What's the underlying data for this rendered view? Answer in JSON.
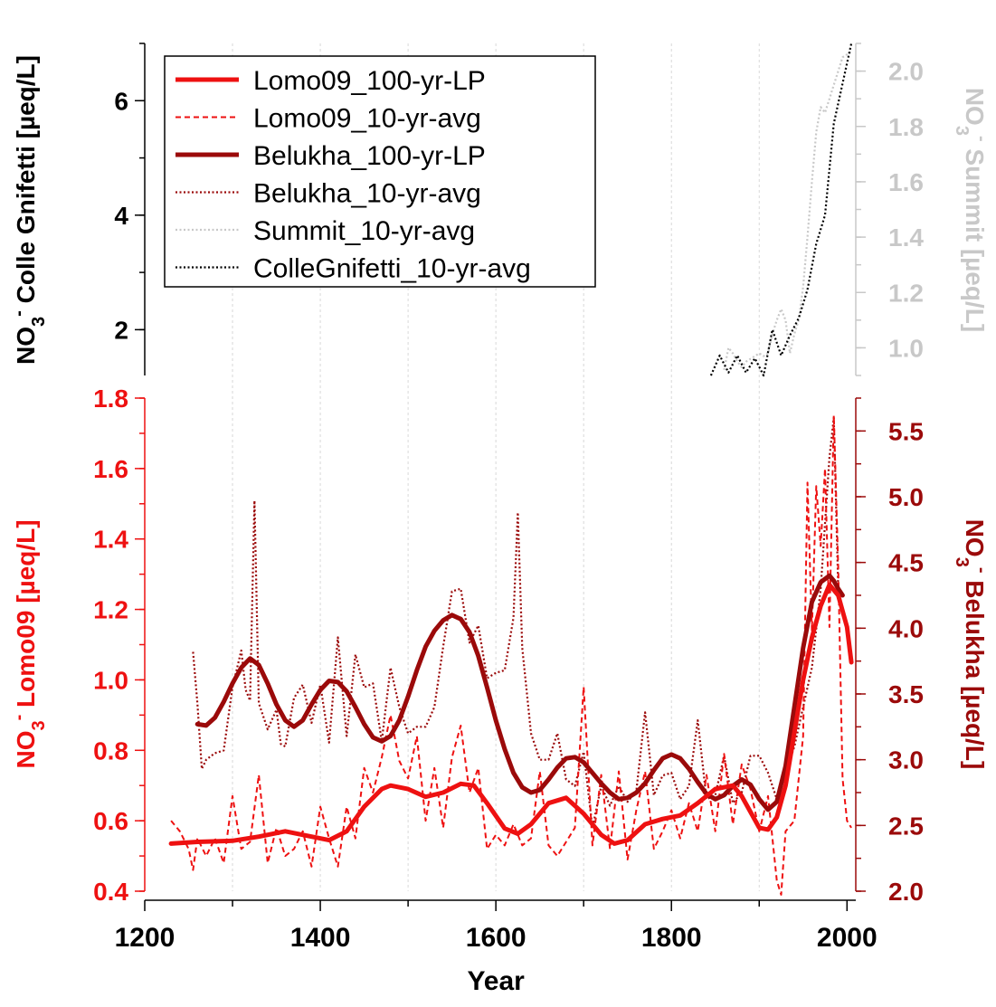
{
  "chart_data": {
    "type": "line",
    "xlabel": "Year",
    "x_ticks": [
      "1200",
      "1400",
      "1600",
      "1800",
      "2000"
    ],
    "xlim": [
      1200,
      2010
    ],
    "gridlines_x": [
      1300,
      1400,
      1500,
      1600,
      1700,
      1800,
      1900
    ],
    "colors": {
      "lomo": "#ee1111",
      "belukha": "#9b0a0a",
      "summit": "#c8c8c8",
      "colle": "#000000"
    },
    "panels": {
      "top": {
        "left_axis": {
          "label_parts": [
            "NO",
            "3",
            "-",
            " Colle Gnifetti [µeq/L]"
          ],
          "ticks": [
            "2",
            "4",
            "6"
          ],
          "ylim": [
            1.2,
            7.0
          ]
        },
        "right_axis": {
          "label_parts": [
            "NO",
            "3",
            "-",
            " Summit [µeq/L]"
          ],
          "ticks": [
            "1.0",
            "1.2",
            "1.4",
            "1.6",
            "1.8",
            "2.0"
          ],
          "ylim": [
            0.9,
            2.1
          ]
        }
      },
      "bottom": {
        "left_axis": {
          "label_parts": [
            "NO",
            "3",
            "-",
            "  Lomo09 [µeq/L]"
          ],
          "ticks": [
            "0.4",
            "0.6",
            "0.8",
            "1.0",
            "1.2",
            "1.4",
            "1.6",
            "1.8"
          ],
          "ylim": [
            0.4,
            1.8
          ]
        },
        "right_axis": {
          "label_parts": [
            "NO",
            "3",
            "-",
            " Belukha [µeq/L]"
          ],
          "ticks": [
            "2.0",
            "2.5",
            "3.0",
            "3.5",
            "4.0",
            "4.5",
            "5.0",
            "5.5"
          ],
          "ylim": [
            2.0,
            5.75
          ]
        }
      }
    },
    "legend": {
      "position": "top-left",
      "entries": [
        {
          "key": "lomo_lp",
          "label": "Lomo09_100-yr-LP"
        },
        {
          "key": "lomo_avg",
          "label": "Lomo09_10-yr-avg"
        },
        {
          "key": "belukha_lp",
          "label": "Belukha_100-yr-LP"
        },
        {
          "key": "belukha_avg",
          "label": "Belukha_10-yr-avg"
        },
        {
          "key": "summit_avg",
          "label": "Summit_10-yr-avg"
        },
        {
          "key": "colle_avg",
          "label": "ColleGnifetti_10-yr-avg"
        }
      ]
    },
    "series": [
      {
        "key": "lomo_lp",
        "label": "Lomo09_100-yr-LP",
        "panel": "bottom",
        "axis": "left",
        "style": "solid-thick",
        "x": [
          1230,
          1260,
          1300,
          1330,
          1360,
          1390,
          1410,
          1430,
          1450,
          1470,
          1480,
          1500,
          1520,
          1540,
          1560,
          1575,
          1590,
          1610,
          1625,
          1640,
          1660,
          1680,
          1700,
          1720,
          1735,
          1750,
          1770,
          1790,
          1810,
          1830,
          1850,
          1870,
          1880,
          1900,
          1910,
          1920,
          1930,
          1940,
          1950,
          1960,
          1970,
          1980,
          1990,
          2000,
          2005
        ],
        "y": [
          0.535,
          0.54,
          0.543,
          0.555,
          0.57,
          0.555,
          0.545,
          0.57,
          0.64,
          0.69,
          0.7,
          0.69,
          0.668,
          0.68,
          0.705,
          0.7,
          0.65,
          0.578,
          0.563,
          0.59,
          0.65,
          0.665,
          0.62,
          0.56,
          0.535,
          0.545,
          0.59,
          0.605,
          0.615,
          0.65,
          0.69,
          0.7,
          0.67,
          0.58,
          0.575,
          0.61,
          0.7,
          0.85,
          1.0,
          1.12,
          1.21,
          1.27,
          1.24,
          1.15,
          1.05
        ]
      },
      {
        "key": "lomo_avg",
        "label": "Lomo09_10-yr-avg",
        "panel": "bottom",
        "axis": "left",
        "style": "dashed",
        "x": [
          1230,
          1240,
          1250,
          1255,
          1260,
          1270,
          1280,
          1290,
          1300,
          1310,
          1320,
          1330,
          1340,
          1350,
          1360,
          1370,
          1380,
          1390,
          1400,
          1410,
          1420,
          1430,
          1440,
          1450,
          1460,
          1470,
          1480,
          1490,
          1500,
          1510,
          1520,
          1530,
          1540,
          1550,
          1560,
          1570,
          1580,
          1590,
          1600,
          1610,
          1620,
          1630,
          1640,
          1650,
          1660,
          1670,
          1680,
          1690,
          1700,
          1710,
          1720,
          1730,
          1740,
          1750,
          1760,
          1770,
          1780,
          1790,
          1800,
          1810,
          1820,
          1830,
          1840,
          1850,
          1860,
          1870,
          1880,
          1890,
          1900,
          1910,
          1920,
          1925,
          1930,
          1940,
          1950,
          1955,
          1960,
          1965,
          1970,
          1975,
          1980,
          1985,
          1990,
          1995,
          2000,
          2005
        ],
        "y": [
          0.6,
          0.57,
          0.52,
          0.46,
          0.55,
          0.5,
          0.55,
          0.48,
          0.67,
          0.52,
          0.54,
          0.73,
          0.48,
          0.58,
          0.5,
          0.52,
          0.57,
          0.47,
          0.64,
          0.55,
          0.47,
          0.64,
          0.55,
          0.75,
          0.68,
          0.78,
          0.9,
          0.77,
          0.72,
          0.84,
          0.6,
          0.75,
          0.58,
          0.78,
          0.87,
          0.68,
          0.75,
          0.52,
          0.56,
          0.53,
          0.59,
          0.53,
          0.55,
          0.74,
          0.53,
          0.5,
          0.54,
          0.58,
          0.98,
          0.53,
          0.73,
          0.52,
          0.74,
          0.49,
          0.63,
          0.74,
          0.52,
          0.57,
          0.63,
          0.55,
          0.65,
          0.57,
          0.73,
          0.57,
          0.79,
          0.59,
          0.76,
          0.69,
          0.57,
          0.67,
          0.43,
          0.39,
          0.57,
          0.6,
          0.84,
          1.56,
          1.14,
          1.55,
          1.38,
          1.6,
          1.15,
          1.75,
          1.32,
          0.72,
          0.6,
          0.58
        ]
      },
      {
        "key": "belukha_lp",
        "label": "Belukha_100-yr-LP",
        "panel": "bottom",
        "axis": "right",
        "style": "solid-thick",
        "x": [
          1260,
          1270,
          1280,
          1290,
          1300,
          1310,
          1320,
          1330,
          1340,
          1350,
          1360,
          1370,
          1380,
          1390,
          1400,
          1410,
          1420,
          1430,
          1440,
          1450,
          1460,
          1470,
          1480,
          1490,
          1500,
          1510,
          1520,
          1530,
          1540,
          1550,
          1560,
          1570,
          1580,
          1590,
          1600,
          1610,
          1620,
          1630,
          1640,
          1650,
          1660,
          1670,
          1680,
          1690,
          1700,
          1710,
          1720,
          1730,
          1740,
          1750,
          1760,
          1770,
          1780,
          1790,
          1800,
          1810,
          1820,
          1830,
          1840,
          1850,
          1860,
          1870,
          1880,
          1890,
          1900,
          1910,
          1920,
          1930,
          1940,
          1950,
          1960,
          1970,
          1980,
          1985,
          1990,
          1995
        ],
        "y": [
          3.27,
          3.26,
          3.32,
          3.44,
          3.58,
          3.7,
          3.77,
          3.72,
          3.58,
          3.42,
          3.3,
          3.25,
          3.3,
          3.42,
          3.53,
          3.6,
          3.59,
          3.52,
          3.4,
          3.27,
          3.17,
          3.14,
          3.18,
          3.3,
          3.48,
          3.68,
          3.86,
          3.98,
          4.06,
          4.1,
          4.07,
          3.97,
          3.79,
          3.55,
          3.3,
          3.08,
          2.9,
          2.79,
          2.75,
          2.77,
          2.85,
          2.94,
          3.01,
          3.02,
          2.98,
          2.9,
          2.82,
          2.75,
          2.7,
          2.71,
          2.75,
          2.82,
          2.92,
          3.01,
          3.04,
          3.01,
          2.93,
          2.83,
          2.74,
          2.7,
          2.73,
          2.8,
          2.85,
          2.81,
          2.7,
          2.62,
          2.68,
          2.95,
          3.4,
          3.85,
          4.2,
          4.35,
          4.4,
          4.36,
          4.3,
          4.25
        ]
      },
      {
        "key": "belukha_avg",
        "label": "Belukha_10-yr-avg",
        "panel": "bottom",
        "axis": "right",
        "style": "dotted",
        "x": [
          1255,
          1260,
          1265,
          1270,
          1280,
          1290,
          1300,
          1310,
          1315,
          1320,
          1325,
          1330,
          1340,
          1350,
          1355,
          1360,
          1370,
          1380,
          1390,
          1400,
          1410,
          1420,
          1430,
          1440,
          1450,
          1460,
          1470,
          1480,
          1490,
          1500,
          1510,
          1520,
          1530,
          1540,
          1550,
          1560,
          1570,
          1580,
          1590,
          1600,
          1610,
          1620,
          1625,
          1630,
          1640,
          1650,
          1660,
          1670,
          1680,
          1690,
          1700,
          1710,
          1720,
          1730,
          1740,
          1750,
          1760,
          1770,
          1780,
          1790,
          1800,
          1810,
          1820,
          1830,
          1840,
          1850,
          1860,
          1870,
          1880,
          1890,
          1900,
          1910,
          1920,
          1930,
          1940,
          1950,
          1960,
          1970,
          1980,
          1985,
          1990
        ],
        "y": [
          3.82,
          3.43,
          2.93,
          3.0,
          3.05,
          3.07,
          3.55,
          3.83,
          3.53,
          3.45,
          4.97,
          3.43,
          3.23,
          3.38,
          3.12,
          3.1,
          3.47,
          3.57,
          3.28,
          3.57,
          3.13,
          3.93,
          3.18,
          3.8,
          3.55,
          3.58,
          3.14,
          3.7,
          3.4,
          3.2,
          3.25,
          3.25,
          3.4,
          3.86,
          4.28,
          4.3,
          3.89,
          4.02,
          3.62,
          3.66,
          3.68,
          4.08,
          4.88,
          3.85,
          3.2,
          3.0,
          3.0,
          3.2,
          2.85,
          2.8,
          3.06,
          2.48,
          2.8,
          2.65,
          2.8,
          2.68,
          2.76,
          3.36,
          2.73,
          2.88,
          2.9,
          2.7,
          2.8,
          3.3,
          2.7,
          2.73,
          3.03,
          2.67,
          2.75,
          3.03,
          3.03,
          2.9,
          2.7,
          2.9,
          3.1,
          3.4,
          3.7,
          4.3,
          5.3,
          5.6,
          4.3
        ]
      },
      {
        "key": "summit_avg",
        "label": "Summit_10-yr-avg",
        "panel": "top",
        "axis": "right",
        "style": "dotted",
        "x": [
          1860,
          1865,
          1870,
          1875,
          1880,
          1885,
          1890,
          1895,
          1900,
          1905,
          1910,
          1915,
          1920,
          1925,
          1930,
          1935,
          1940,
          1945,
          1950,
          1955,
          1960,
          1965,
          1970,
          1975,
          1980,
          1985,
          1990,
          1995,
          2000,
          2005
        ],
        "y": [
          0.92,
          1.0,
          0.98,
          0.95,
          0.93,
          0.95,
          0.96,
          0.97,
          0.98,
          0.97,
          0.98,
          1.05,
          1.1,
          1.14,
          1.1,
          0.98,
          1.05,
          1.1,
          1.22,
          1.4,
          1.6,
          1.78,
          1.87,
          1.85,
          1.9,
          1.95,
          2.0,
          2.05,
          2.06,
          2.07
        ]
      },
      {
        "key": "colle_avg",
        "label": "ColleGnifetti_10-yr-avg",
        "panel": "top",
        "axis": "left",
        "style": "dotted",
        "x": [
          1845,
          1855,
          1865,
          1875,
          1885,
          1895,
          1905,
          1915,
          1925,
          1935,
          1945,
          1955,
          1965,
          1975,
          1985,
          1995,
          2005
        ],
        "y": [
          1.2,
          1.55,
          1.25,
          1.55,
          1.25,
          1.5,
          1.2,
          2.0,
          1.55,
          1.9,
          2.2,
          2.7,
          3.5,
          4.0,
          5.6,
          6.3,
          7.0
        ]
      }
    ]
  }
}
